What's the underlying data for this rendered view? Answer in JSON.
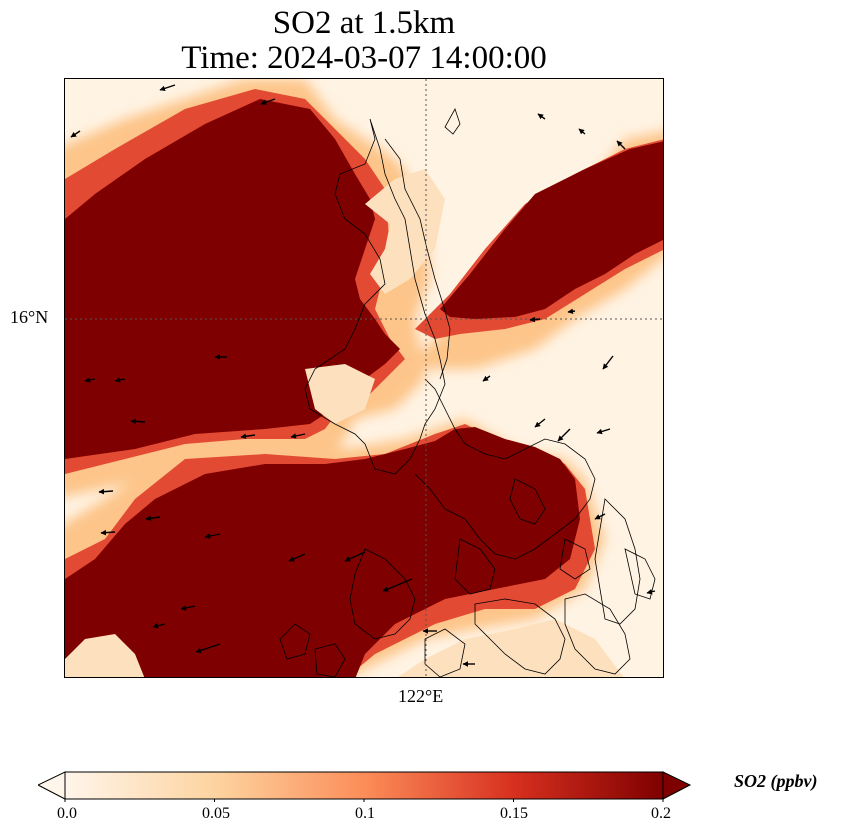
{
  "title_line1": "SO2 at 1.5km",
  "title_line2": "Time: 2024-03-07 14:00:00",
  "lat_label": "16°N",
  "lon_label": "122°E",
  "colorbar": {
    "label": "SO2 (ppbv)",
    "ticks": [
      "0.0",
      "0.05",
      "0.1",
      "0.15",
      "0.2"
    ],
    "min": 0.0,
    "max": 0.2,
    "extend": "both",
    "colors": [
      "#fff5eb",
      "#fdd4a0",
      "#fc8d59",
      "#d7301f",
      "#7f0000"
    ]
  },
  "field": {
    "name": "SO2",
    "units": "ppbv",
    "level": "1.5km",
    "saturated_color": "#7f0000"
  }
}
